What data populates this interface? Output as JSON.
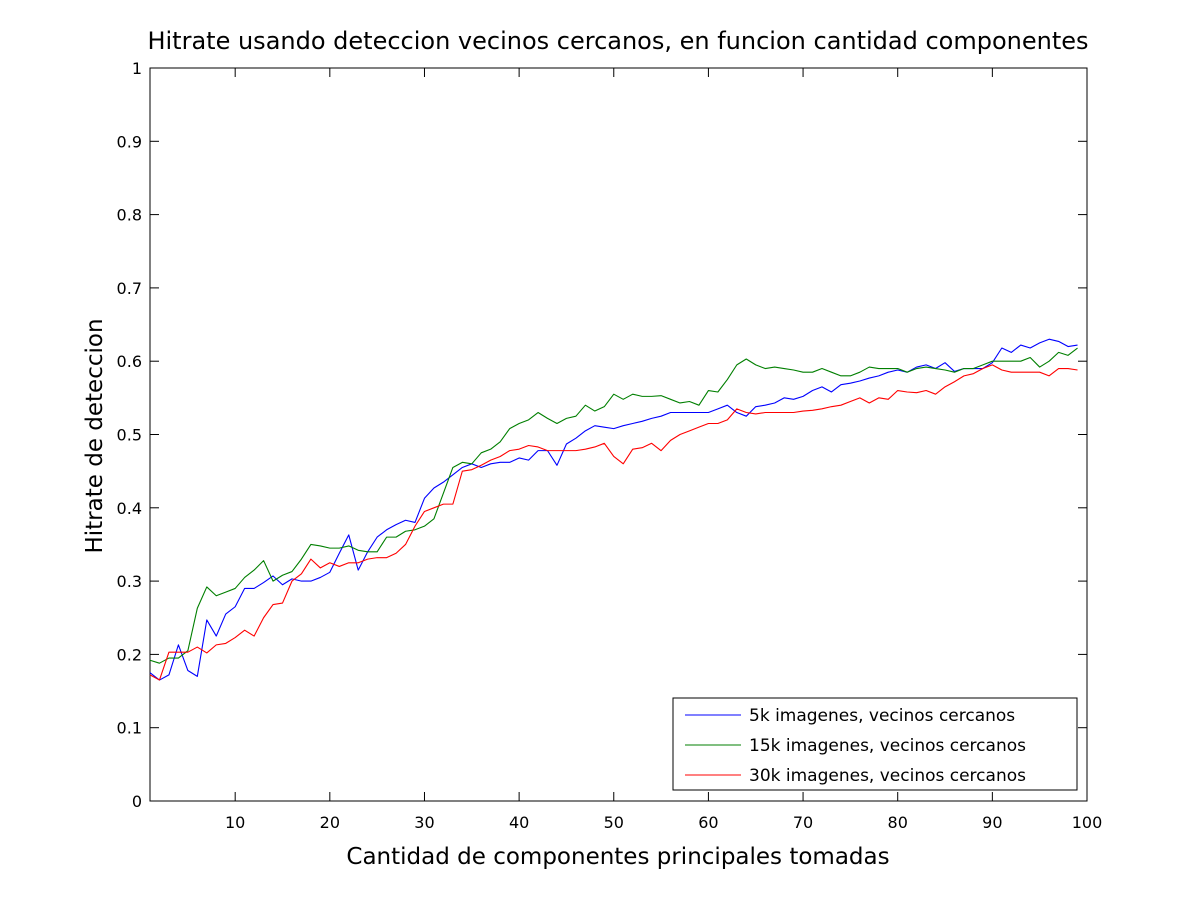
{
  "chart_data": {
    "type": "line",
    "title": "Hitrate usando deteccion vecinos cercanos, en funcion cantidad componentes",
    "xlabel": "Cantidad de componentes principales tomadas",
    "ylabel": "Hitrate de deteccion",
    "xlim": [
      1,
      100
    ],
    "ylim": [
      0,
      1
    ],
    "xticks": [
      10,
      20,
      30,
      40,
      50,
      60,
      70,
      80,
      90,
      100
    ],
    "yticks": [
      0,
      0.1,
      0.2,
      0.3,
      0.4,
      0.5,
      0.6,
      0.7,
      0.8,
      0.9,
      1
    ],
    "ytick_labels": [
      "0",
      "0.1",
      "0.2",
      "0.3",
      "0.4",
      "0.5",
      "0.6",
      "0.7",
      "0.8",
      "0.9",
      "1"
    ],
    "grid": false,
    "legend_position": "bottom-right",
    "x": [
      1,
      2,
      3,
      4,
      5,
      6,
      7,
      8,
      9,
      10,
      11,
      12,
      13,
      14,
      15,
      16,
      17,
      18,
      19,
      20,
      21,
      22,
      23,
      24,
      25,
      26,
      27,
      28,
      29,
      30,
      31,
      32,
      33,
      34,
      35,
      36,
      37,
      38,
      39,
      40,
      41,
      42,
      43,
      44,
      45,
      46,
      47,
      48,
      49,
      50,
      51,
      52,
      53,
      54,
      55,
      56,
      57,
      58,
      59,
      60,
      61,
      62,
      63,
      64,
      65,
      66,
      67,
      68,
      69,
      70,
      71,
      72,
      73,
      74,
      75,
      76,
      77,
      78,
      79,
      80,
      81,
      82,
      83,
      84,
      85,
      86,
      87,
      88,
      89,
      90,
      91,
      92,
      93,
      94,
      95,
      96,
      97,
      98,
      99
    ],
    "series": [
      {
        "name": "5k imagenes, vecinos cercanos",
        "color": "#0000ff",
        "values": [
          0.175,
          0.165,
          0.172,
          0.213,
          0.178,
          0.17,
          0.247,
          0.225,
          0.255,
          0.265,
          0.29,
          0.29,
          0.298,
          0.307,
          0.295,
          0.303,
          0.3,
          0.3,
          0.305,
          0.312,
          0.338,
          0.363,
          0.315,
          0.34,
          0.36,
          0.37,
          0.377,
          0.383,
          0.38,
          0.413,
          0.427,
          0.435,
          0.445,
          0.455,
          0.46,
          0.455,
          0.46,
          0.462,
          0.462,
          0.468,
          0.465,
          0.478,
          0.478,
          0.458,
          0.487,
          0.495,
          0.505,
          0.512,
          0.51,
          0.508,
          0.512,
          0.515,
          0.518,
          0.522,
          0.525,
          0.53,
          0.53,
          0.53,
          0.53,
          0.53,
          0.535,
          0.54,
          0.53,
          0.525,
          0.538,
          0.54,
          0.543,
          0.55,
          0.548,
          0.552,
          0.56,
          0.565,
          0.558,
          0.568,
          0.57,
          0.573,
          0.577,
          0.58,
          0.585,
          0.588,
          0.585,
          0.592,
          0.595,
          0.59,
          0.598,
          0.586,
          0.59,
          0.59,
          0.59,
          0.598,
          0.618,
          0.612,
          0.622,
          0.618,
          0.625,
          0.63,
          0.627,
          0.62,
          0.622
        ]
      },
      {
        "name": "15k imagenes, vecinos cercanos",
        "color": "#007f00",
        "values": [
          0.192,
          0.188,
          0.195,
          0.195,
          0.205,
          0.263,
          0.292,
          0.28,
          0.285,
          0.29,
          0.305,
          0.315,
          0.328,
          0.3,
          0.308,
          0.313,
          0.33,
          0.35,
          0.348,
          0.345,
          0.345,
          0.348,
          0.342,
          0.34,
          0.34,
          0.36,
          0.36,
          0.368,
          0.37,
          0.375,
          0.385,
          0.42,
          0.455,
          0.462,
          0.46,
          0.475,
          0.48,
          0.49,
          0.508,
          0.515,
          0.52,
          0.53,
          0.522,
          0.515,
          0.522,
          0.525,
          0.54,
          0.532,
          0.538,
          0.555,
          0.548,
          0.555,
          0.552,
          0.552,
          0.553,
          0.548,
          0.543,
          0.545,
          0.54,
          0.56,
          0.558,
          0.575,
          0.595,
          0.603,
          0.595,
          0.59,
          0.592,
          0.59,
          0.588,
          0.585,
          0.585,
          0.59,
          0.585,
          0.58,
          0.58,
          0.585,
          0.592,
          0.59,
          0.59,
          0.59,
          0.585,
          0.59,
          0.592,
          0.59,
          0.588,
          0.585,
          0.59,
          0.59,
          0.595,
          0.6,
          0.6,
          0.6,
          0.6,
          0.605,
          0.592,
          0.6,
          0.612,
          0.608,
          0.618
        ]
      },
      {
        "name": "30k imagenes, vecinos cercanos",
        "color": "#ff0000",
        "values": [
          0.172,
          0.165,
          0.203,
          0.203,
          0.203,
          0.21,
          0.202,
          0.213,
          0.215,
          0.223,
          0.233,
          0.225,
          0.25,
          0.268,
          0.27,
          0.3,
          0.31,
          0.33,
          0.318,
          0.325,
          0.32,
          0.325,
          0.325,
          0.33,
          0.332,
          0.332,
          0.338,
          0.35,
          0.375,
          0.395,
          0.4,
          0.405,
          0.405,
          0.45,
          0.452,
          0.458,
          0.465,
          0.47,
          0.478,
          0.48,
          0.485,
          0.483,
          0.478,
          0.478,
          0.478,
          0.478,
          0.48,
          0.483,
          0.488,
          0.47,
          0.46,
          0.48,
          0.482,
          0.488,
          0.478,
          0.492,
          0.5,
          0.505,
          0.51,
          0.515,
          0.515,
          0.52,
          0.535,
          0.53,
          0.528,
          0.53,
          0.53,
          0.53,
          0.53,
          0.532,
          0.533,
          0.535,
          0.538,
          0.54,
          0.545,
          0.55,
          0.543,
          0.55,
          0.548,
          0.56,
          0.558,
          0.557,
          0.56,
          0.555,
          0.565,
          0.572,
          0.58,
          0.583,
          0.59,
          0.595,
          0.588,
          0.585,
          0.585,
          0.585,
          0.585,
          0.58,
          0.59,
          0.59,
          0.588
        ]
      }
    ]
  }
}
